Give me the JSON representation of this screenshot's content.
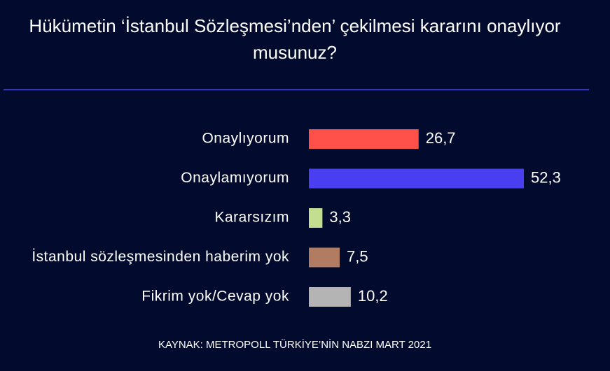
{
  "chart_data": {
    "type": "bar",
    "orientation": "horizontal",
    "title": "Hükümetin ‘İstanbul Sözleşmesi’nden’ çekilmesi kararını onaylıyor musunuz?",
    "categories": [
      "Onaylıyorum",
      "Onaylamıyorum",
      "Kararsızım",
      "İstanbul sözleşmesinden haberim yok",
      "Fikrim yok/Cevap yok"
    ],
    "values": [
      26.7,
      52.3,
      3.3,
      7.5,
      10.2
    ],
    "value_labels": [
      "26,7",
      "52,3",
      "3,3",
      "7,5",
      "10,2"
    ],
    "colors": [
      "#ff5149",
      "#4a3ff0",
      "#c3de8f",
      "#b27c62",
      "#b4b4b4"
    ],
    "source": "KAYNAK: METROPOLL TÜRKİYE’NİN NABZI MART 2021"
  }
}
